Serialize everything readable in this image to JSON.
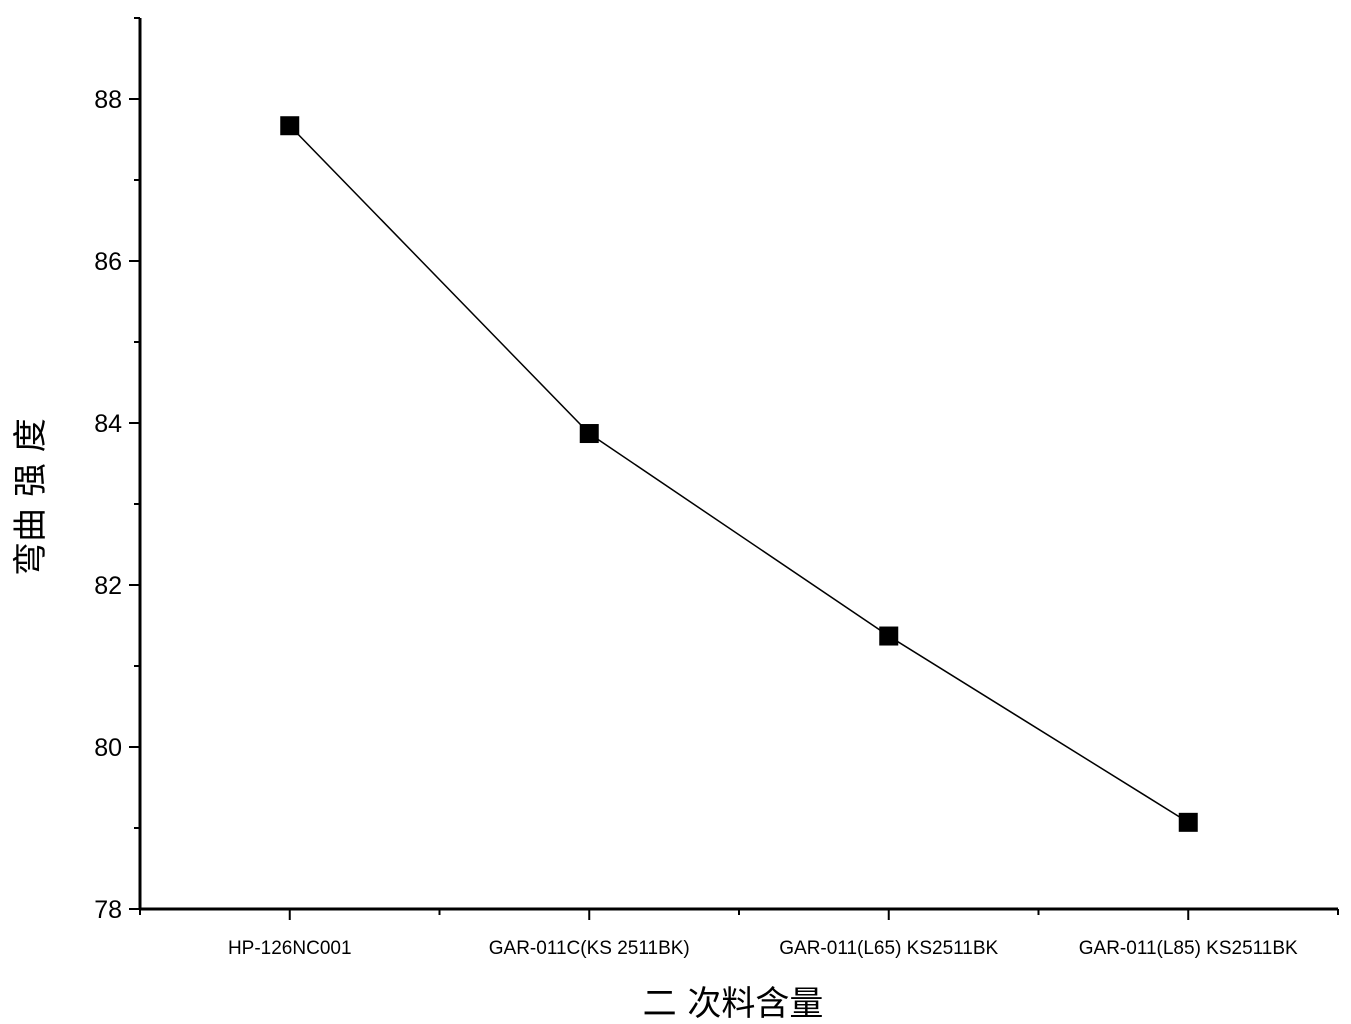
{
  "chart_data": {
    "type": "line",
    "title": "",
    "xlabel": "二 次料含量",
    "ylabel": "弯曲 强 度",
    "categories": [
      "HP-126NC001",
      "GAR-011C(KS 2511BK)",
      "GAR-011(L65) KS2511BK",
      "GAR-011(L85) KS2511BK"
    ],
    "series": [
      {
        "values": [
          87.67,
          83.87,
          81.37,
          79.07
        ],
        "color": "#000000",
        "marker": "square"
      }
    ],
    "ylim": [
      78,
      89
    ],
    "yticks": [
      78,
      80,
      82,
      84,
      86,
      88
    ],
    "grid": false,
    "legend": "none"
  }
}
